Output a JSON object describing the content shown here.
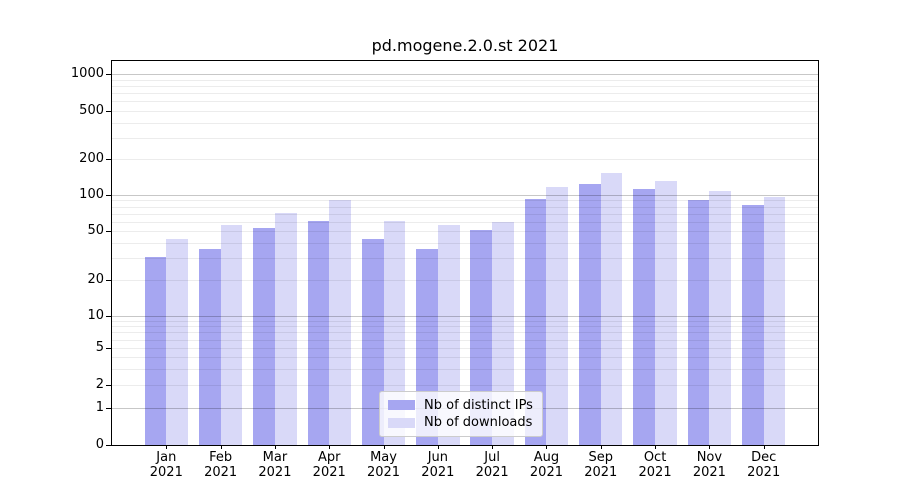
{
  "chart_data": {
    "type": "bar",
    "title": "pd.mogene.2.0.st 2021",
    "yscale": "symlog",
    "grid": true,
    "legend_position": "lower center",
    "categories": [
      "Jan",
      "Feb",
      "Mar",
      "Apr",
      "May",
      "Jun",
      "Jul",
      "Aug",
      "Sep",
      "Oct",
      "Nov",
      "Dec"
    ],
    "category_year": "2021",
    "series": [
      {
        "name": "Nb of distinct IPs",
        "color": "#a6a6f1",
        "values": [
          31,
          36,
          53,
          61,
          43,
          36,
          51,
          93,
          123,
          112,
          91,
          83
        ]
      },
      {
        "name": "Nb of downloads",
        "color": "#d9d9f8",
        "values": [
          43,
          56,
          71,
          91,
          61,
          56,
          60,
          117,
          152,
          130,
          107,
          97
        ]
      }
    ],
    "y_ticks": [
      0,
      1,
      2,
      5,
      10,
      20,
      50,
      100,
      200,
      500,
      1000
    ],
    "ylim": [
      0,
      1000
    ],
    "xlabel": "",
    "ylabel": ""
  }
}
